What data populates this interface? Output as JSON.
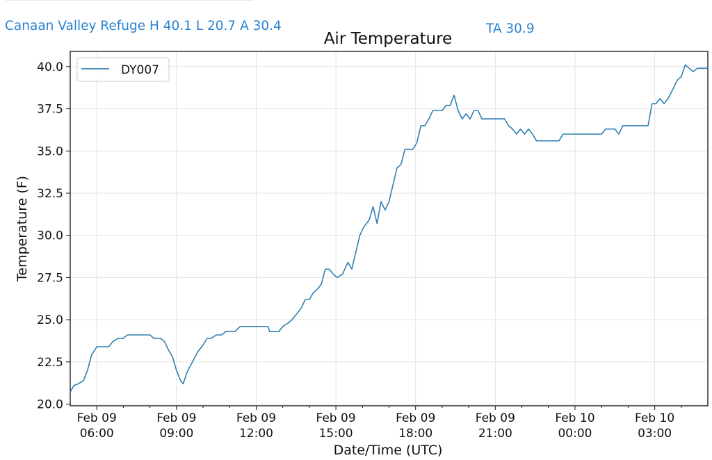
{
  "header": {
    "station_summary": "Canaan Valley Refuge H 40.1 L 20.7 A 30.4",
    "ta_readout": "TA 30.9",
    "accent_color": "#2b83d0"
  },
  "chart_data": {
    "type": "line",
    "title": "Air Temperature",
    "xlabel": "Date/Time (UTC)",
    "ylabel": "Temperature (F)",
    "x_format": "hours since Feb 09 00:00 UTC",
    "xlim": [
      5.0,
      29.0
    ],
    "ylim": [
      19.9,
      40.9
    ],
    "grid": true,
    "legend_position": "top-left",
    "x_ticks": [
      {
        "value": 6,
        "date": "Feb 09",
        "time": "06:00"
      },
      {
        "value": 9,
        "date": "Feb 09",
        "time": "09:00"
      },
      {
        "value": 12,
        "date": "Feb 09",
        "time": "12:00"
      },
      {
        "value": 15,
        "date": "Feb 09",
        "time": "15:00"
      },
      {
        "value": 18,
        "date": "Feb 09",
        "time": "18:00"
      },
      {
        "value": 21,
        "date": "Feb 09",
        "time": "21:00"
      },
      {
        "value": 24,
        "date": "Feb 10",
        "time": "00:00"
      },
      {
        "value": 27,
        "date": "Feb 10",
        "time": "03:00"
      }
    ],
    "y_ticks": [
      "20.0",
      "22.5",
      "25.0",
      "27.5",
      "30.0",
      "32.5",
      "35.0",
      "37.5",
      "40.0"
    ],
    "minor_x_ticks": [
      7,
      8,
      10,
      11,
      13,
      14,
      16,
      17,
      19,
      20,
      22,
      23,
      25,
      26,
      28
    ],
    "series": [
      {
        "name": "DY007",
        "color": "#2f7fb2",
        "points": [
          [
            5.0,
            20.7
          ],
          [
            5.13,
            21.1
          ],
          [
            5.3,
            21.2
          ],
          [
            5.5,
            21.4
          ],
          [
            5.65,
            22.0
          ],
          [
            5.8,
            22.9
          ],
          [
            6.0,
            23.4
          ],
          [
            6.3,
            23.4
          ],
          [
            6.45,
            23.4
          ],
          [
            6.6,
            23.7
          ],
          [
            6.8,
            23.9
          ],
          [
            7.0,
            23.9
          ],
          [
            7.15,
            24.1
          ],
          [
            7.5,
            24.1
          ],
          [
            7.8,
            24.1
          ],
          [
            8.0,
            24.1
          ],
          [
            8.15,
            23.9
          ],
          [
            8.4,
            23.9
          ],
          [
            8.55,
            23.7
          ],
          [
            8.7,
            23.2
          ],
          [
            8.85,
            22.8
          ],
          [
            9.0,
            22.0
          ],
          [
            9.15,
            21.4
          ],
          [
            9.25,
            21.2
          ],
          [
            9.4,
            21.9
          ],
          [
            9.6,
            22.5
          ],
          [
            9.8,
            23.1
          ],
          [
            10.0,
            23.5
          ],
          [
            10.15,
            23.9
          ],
          [
            10.3,
            23.9
          ],
          [
            10.5,
            24.1
          ],
          [
            10.7,
            24.1
          ],
          [
            10.85,
            24.3
          ],
          [
            11.0,
            24.3
          ],
          [
            11.2,
            24.3
          ],
          [
            11.4,
            24.6
          ],
          [
            11.6,
            24.6
          ],
          [
            12.0,
            24.6
          ],
          [
            12.3,
            24.6
          ],
          [
            12.45,
            24.6
          ],
          [
            12.5,
            24.3
          ],
          [
            12.7,
            24.3
          ],
          [
            12.85,
            24.3
          ],
          [
            13.0,
            24.6
          ],
          [
            13.2,
            24.8
          ],
          [
            13.35,
            25.0
          ],
          [
            13.5,
            25.3
          ],
          [
            13.7,
            25.7
          ],
          [
            13.85,
            26.2
          ],
          [
            14.0,
            26.2
          ],
          [
            14.15,
            26.6
          ],
          [
            14.3,
            26.8
          ],
          [
            14.45,
            27.1
          ],
          [
            14.6,
            28.0
          ],
          [
            14.75,
            28.0
          ],
          [
            14.9,
            27.7
          ],
          [
            15.05,
            27.5
          ],
          [
            15.25,
            27.7
          ],
          [
            15.45,
            28.4
          ],
          [
            15.6,
            28.0
          ],
          [
            15.75,
            29.0
          ],
          [
            15.9,
            30.0
          ],
          [
            16.05,
            30.5
          ],
          [
            16.25,
            30.9
          ],
          [
            16.4,
            31.7
          ],
          [
            16.55,
            30.7
          ],
          [
            16.7,
            32.0
          ],
          [
            16.85,
            31.5
          ],
          [
            17.0,
            32.0
          ],
          [
            17.15,
            33.0
          ],
          [
            17.3,
            34.0
          ],
          [
            17.45,
            34.2
          ],
          [
            17.6,
            35.1
          ],
          [
            17.75,
            35.1
          ],
          [
            17.9,
            35.1
          ],
          [
            18.05,
            35.5
          ],
          [
            18.2,
            36.5
          ],
          [
            18.35,
            36.5
          ],
          [
            18.5,
            36.9
          ],
          [
            18.65,
            37.4
          ],
          [
            18.8,
            37.4
          ],
          [
            19.0,
            37.4
          ],
          [
            19.15,
            37.7
          ],
          [
            19.3,
            37.7
          ],
          [
            19.45,
            38.3
          ],
          [
            19.6,
            37.4
          ],
          [
            19.75,
            36.9
          ],
          [
            19.9,
            37.2
          ],
          [
            20.05,
            36.9
          ],
          [
            20.2,
            37.4
          ],
          [
            20.35,
            37.4
          ],
          [
            20.5,
            36.9
          ],
          [
            20.7,
            36.9
          ],
          [
            21.0,
            36.9
          ],
          [
            21.35,
            36.9
          ],
          [
            21.5,
            36.5
          ],
          [
            21.65,
            36.3
          ],
          [
            21.8,
            36.0
          ],
          [
            21.95,
            36.3
          ],
          [
            22.1,
            36.0
          ],
          [
            22.25,
            36.3
          ],
          [
            22.4,
            36.0
          ],
          [
            22.55,
            35.6
          ],
          [
            23.0,
            35.6
          ],
          [
            23.3,
            35.6
          ],
          [
            23.4,
            35.6
          ],
          [
            23.55,
            36.0
          ],
          [
            24.0,
            36.0
          ],
          [
            24.5,
            36.0
          ],
          [
            25.0,
            36.0
          ],
          [
            25.15,
            36.3
          ],
          [
            25.5,
            36.3
          ],
          [
            25.65,
            36.0
          ],
          [
            25.8,
            36.5
          ],
          [
            26.0,
            36.5
          ],
          [
            26.5,
            36.5
          ],
          [
            26.75,
            36.5
          ],
          [
            26.9,
            37.8
          ],
          [
            27.05,
            37.8
          ],
          [
            27.2,
            38.1
          ],
          [
            27.35,
            37.8
          ],
          [
            27.5,
            38.1
          ],
          [
            27.7,
            38.7
          ],
          [
            27.85,
            39.2
          ],
          [
            28.0,
            39.4
          ],
          [
            28.15,
            40.1
          ],
          [
            28.3,
            39.9
          ],
          [
            28.45,
            39.7
          ],
          [
            28.6,
            39.9
          ],
          [
            28.8,
            39.9
          ],
          [
            29.0,
            39.9
          ]
        ]
      }
    ]
  }
}
